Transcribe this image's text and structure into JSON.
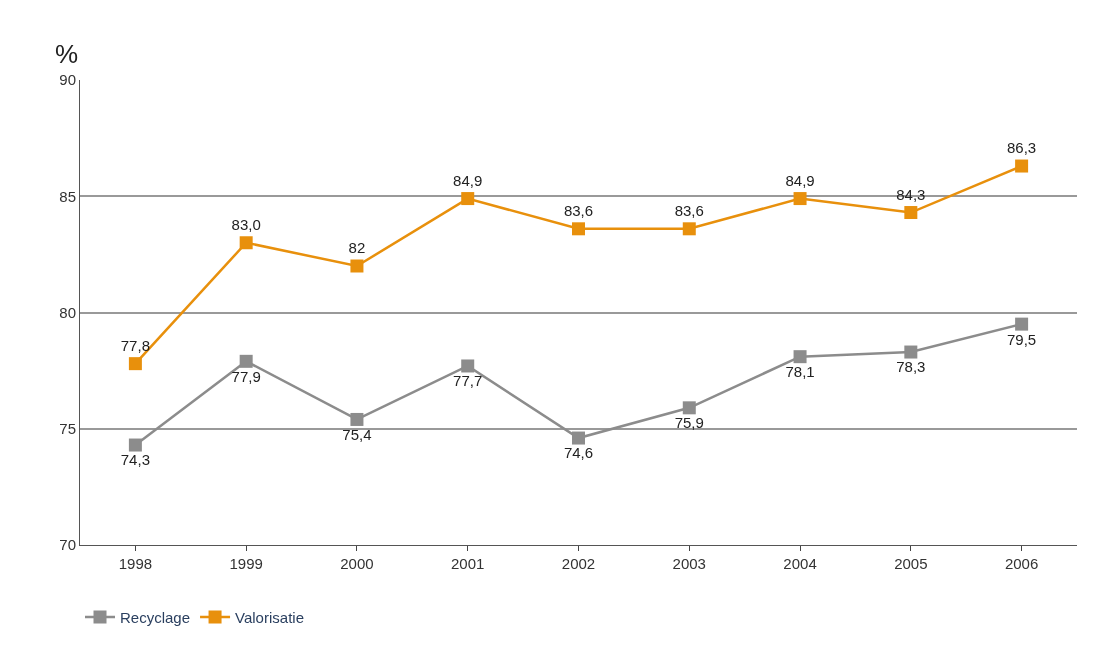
{
  "chart_data": {
    "type": "line",
    "ylabel": "%",
    "categories": [
      "1998",
      "1999",
      "2000",
      "2001",
      "2002",
      "2003",
      "2004",
      "2005",
      "2006"
    ],
    "series": [
      {
        "name": "Recyclage",
        "color": "#8c8c8c",
        "values": [
          74.3,
          77.9,
          75.4,
          77.7,
          74.6,
          75.9,
          78.1,
          78.3,
          79.5
        ],
        "value_labels": [
          "74,3",
          "77,9",
          "75,4",
          "77,7",
          "74,6",
          "75,9",
          "78,1",
          "78,3",
          "79,5"
        ]
      },
      {
        "name": "Valorisatie",
        "color": "#e8900c",
        "values": [
          77.8,
          83.0,
          82,
          84.9,
          83.6,
          83.6,
          84.9,
          84.3,
          86.3
        ],
        "value_labels": [
          "77,8",
          "83,0",
          "82",
          "84,9",
          "83,6",
          "83,6",
          "84,9",
          "84,3",
          "86,3"
        ]
      }
    ],
    "ylim": [
      70,
      90
    ],
    "yticks": [
      70,
      75,
      80,
      85,
      90
    ],
    "grid": "y",
    "legend": "bottom left",
    "marker": "square",
    "line_style": "solid"
  }
}
